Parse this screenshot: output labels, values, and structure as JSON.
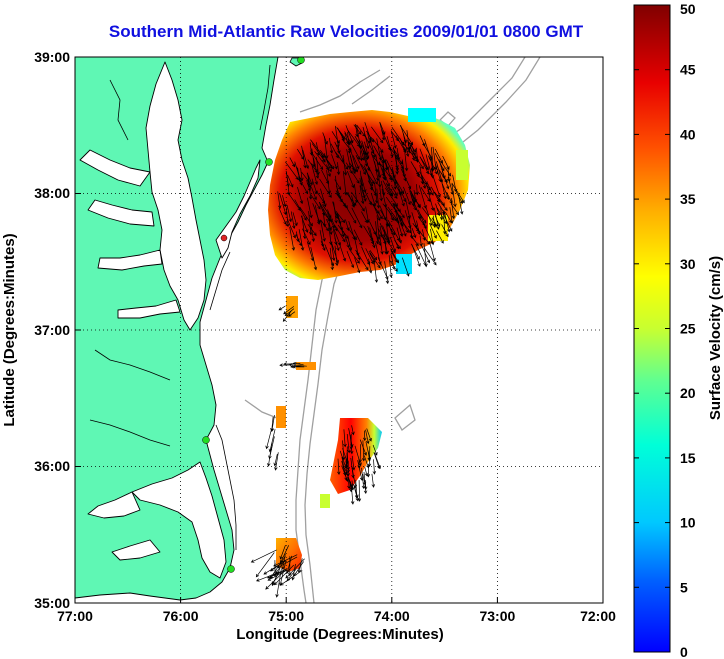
{
  "title": "Southern Mid-Atlantic Raw Velocities 2009/01/01 0800 GMT",
  "x_axis": {
    "label": "Longitude (Degrees:Minutes)",
    "ticks": [
      "77:00",
      "76:00",
      "75:00",
      "74:00",
      "73:00",
      "72:00"
    ]
  },
  "y_axis": {
    "label": "Latitude (Degrees:Minutes)",
    "ticks": [
      "39:00",
      "38:00",
      "37:00",
      "36:00",
      "35:00"
    ]
  },
  "colorbar": {
    "label": "Surface Velocity (cm/s)",
    "ticks": [
      "50",
      "45",
      "40",
      "35",
      "30",
      "25",
      "20",
      "15",
      "10",
      "5",
      "0"
    ],
    "min": 0,
    "max": 50
  },
  "colors": {
    "land": "#5ff7b4",
    "title": "#1010e0",
    "contour": "#a0a0a0",
    "station_marker": "#22dd22",
    "station_marker_alt": "#dd2222"
  }
}
